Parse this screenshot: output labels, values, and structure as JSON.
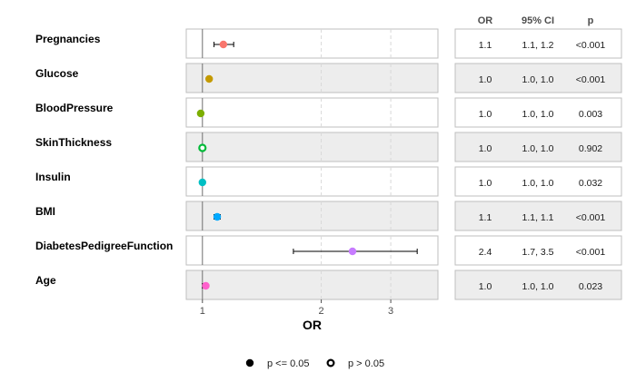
{
  "chart_data": {
    "type": "forest",
    "xlabel": "OR",
    "x_ticks": [
      1,
      2,
      3
    ],
    "table_headers": [
      "OR",
      "95% CI",
      "p"
    ],
    "rows": [
      {
        "label": "Pregnancies",
        "or": 1.13,
        "lo": 1.07,
        "hi": 1.2,
        "or_text": "1.1",
        "ci_text": "1.1, 1.2",
        "p_text": "<0.001",
        "significant": true,
        "color": "#F8766D"
      },
      {
        "label": "Glucose",
        "or": 1.04,
        "lo": 1.03,
        "hi": 1.04,
        "or_text": "1.0",
        "ci_text": "1.0, 1.0",
        "p_text": "<0.001",
        "significant": true,
        "color": "#C49A00"
      },
      {
        "label": "BloodPressure",
        "or": 0.99,
        "lo": 0.98,
        "hi": 1.0,
        "or_text": "1.0",
        "ci_text": "1.0, 1.0",
        "p_text": "0.003",
        "significant": true,
        "color": "#7CAE00"
      },
      {
        "label": "SkinThickness",
        "or": 1.0,
        "lo": 0.99,
        "hi": 1.01,
        "or_text": "1.0",
        "ci_text": "1.0, 1.0",
        "p_text": "0.902",
        "significant": false,
        "color": "#00BA38"
      },
      {
        "label": "Insulin",
        "or": 1.0,
        "lo": 1.0,
        "hi": 1.0,
        "or_text": "1.0",
        "ci_text": "1.0, 1.0",
        "p_text": "0.032",
        "significant": true,
        "color": "#00BFC4"
      },
      {
        "label": "BMI",
        "or": 1.09,
        "lo": 1.07,
        "hi": 1.11,
        "or_text": "1.1",
        "ci_text": "1.1, 1.1",
        "p_text": "<0.001",
        "significant": true,
        "color": "#00A9FF"
      },
      {
        "label": "DiabetesPedigreeFunction",
        "or": 2.4,
        "lo": 1.7,
        "hi": 3.5,
        "or_text": "2.4",
        "ci_text": "1.7, 3.5",
        "p_text": "<0.001",
        "significant": true,
        "color": "#C77CFF"
      },
      {
        "label": "Age",
        "or": 1.02,
        "lo": 1.0,
        "hi": 1.03,
        "or_text": "1.0",
        "ci_text": "1.0, 1.0",
        "p_text": "0.023",
        "significant": true,
        "color": "#FF61CC"
      }
    ],
    "legend": [
      {
        "label": "p <= 0.05",
        "filled": true
      },
      {
        "label": "p > 0.05",
        "filled": false
      }
    ],
    "legend_placement": "bottom",
    "grid": true
  }
}
